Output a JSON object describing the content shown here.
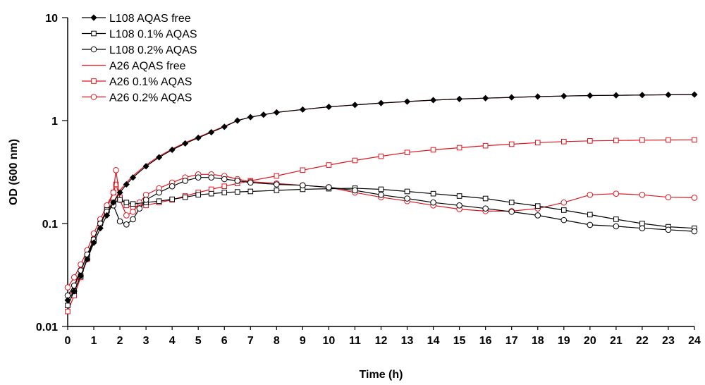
{
  "chart_data": {
    "type": "line",
    "title": "",
    "xlabel": "Time (h)",
    "ylabel": "OD (600 nm)",
    "xlim": [
      0,
      24
    ],
    "ylim": [
      0.01,
      10
    ],
    "yscale": "log",
    "grid": false,
    "legend_position": "top-left",
    "x_ticks": [
      "0",
      "1",
      "2",
      "3",
      "4",
      "5",
      "6",
      "7",
      "8",
      "9",
      "10",
      "11",
      "12",
      "13",
      "14",
      "15",
      "16",
      "17",
      "18",
      "19",
      "20",
      "21",
      "22",
      "23",
      "24"
    ],
    "y_ticks": [
      {
        "value": 0.01,
        "label": "0.01"
      },
      {
        "value": 0.1,
        "label": "0.1"
      },
      {
        "value": 1,
        "label": "1"
      },
      {
        "value": 10,
        "label": "10"
      }
    ],
    "series": [
      {
        "name": "L108 AQAS free",
        "color": "#000000",
        "marker": "diamond-filled",
        "line": "solid",
        "points": [
          [
            0,
            0.018
          ],
          [
            0.25,
            0.022
          ],
          [
            0.5,
            0.031
          ],
          [
            0.75,
            0.045
          ],
          [
            1,
            0.065
          ],
          [
            1.25,
            0.09
          ],
          [
            1.5,
            0.12
          ],
          [
            1.75,
            0.16
          ],
          [
            2,
            0.2
          ],
          [
            2.25,
            0.24
          ],
          [
            2.5,
            0.28
          ],
          [
            3,
            0.36
          ],
          [
            3.5,
            0.44
          ],
          [
            4,
            0.52
          ],
          [
            4.5,
            0.6
          ],
          [
            5,
            0.68
          ],
          [
            5.5,
            0.77
          ],
          [
            6,
            0.87
          ],
          [
            6.5,
            1.0
          ],
          [
            7,
            1.08
          ],
          [
            7.5,
            1.14
          ],
          [
            8,
            1.2
          ],
          [
            9,
            1.28
          ],
          [
            10,
            1.36
          ],
          [
            11,
            1.42
          ],
          [
            12,
            1.48
          ],
          [
            13,
            1.53
          ],
          [
            14,
            1.58
          ],
          [
            15,
            1.62
          ],
          [
            16,
            1.65
          ],
          [
            17,
            1.68
          ],
          [
            18,
            1.71
          ],
          [
            19,
            1.73
          ],
          [
            20,
            1.75
          ],
          [
            21,
            1.76
          ],
          [
            22,
            1.77
          ],
          [
            23,
            1.78
          ],
          [
            24,
            1.79
          ]
        ]
      },
      {
        "name": "L108 0.1% AQAS",
        "color": "#000000",
        "marker": "square-open",
        "line": "solid",
        "points": [
          [
            0,
            0.016
          ],
          [
            0.25,
            0.022
          ],
          [
            0.5,
            0.031
          ],
          [
            0.75,
            0.046
          ],
          [
            1,
            0.07
          ],
          [
            1.25,
            0.1
          ],
          [
            1.5,
            0.135
          ],
          [
            1.75,
            0.16
          ],
          [
            2,
            0.17
          ],
          [
            2.25,
            0.16
          ],
          [
            2.5,
            0.155
          ],
          [
            3,
            0.16
          ],
          [
            3.5,
            0.165
          ],
          [
            4,
            0.172
          ],
          [
            4.5,
            0.18
          ],
          [
            5,
            0.19
          ],
          [
            5.5,
            0.195
          ],
          [
            6,
            0.2
          ],
          [
            6.5,
            0.203
          ],
          [
            7,
            0.205
          ],
          [
            8,
            0.21
          ],
          [
            9,
            0.215
          ],
          [
            10,
            0.218
          ],
          [
            11,
            0.22
          ],
          [
            12,
            0.215
          ],
          [
            13,
            0.205
          ],
          [
            14,
            0.195
          ],
          [
            15,
            0.185
          ],
          [
            16,
            0.175
          ],
          [
            17,
            0.16
          ],
          [
            18,
            0.148
          ],
          [
            19,
            0.135
          ],
          [
            20,
            0.122
          ],
          [
            21,
            0.11
          ],
          [
            22,
            0.1
          ],
          [
            23,
            0.093
          ],
          [
            24,
            0.09
          ]
        ]
      },
      {
        "name": "L108 0.2% AQAS",
        "color": "#000000",
        "marker": "circle-open",
        "line": "solid",
        "points": [
          [
            0,
            0.02
          ],
          [
            0.25,
            0.025
          ],
          [
            0.5,
            0.035
          ],
          [
            0.75,
            0.05
          ],
          [
            1,
            0.07
          ],
          [
            1.25,
            0.1
          ],
          [
            1.5,
            0.13
          ],
          [
            1.75,
            0.15
          ],
          [
            2,
            0.105
          ],
          [
            2.25,
            0.098
          ],
          [
            2.5,
            0.11
          ],
          [
            2.75,
            0.14
          ],
          [
            3,
            0.17
          ],
          [
            3.5,
            0.2
          ],
          [
            4,
            0.23
          ],
          [
            4.5,
            0.26
          ],
          [
            5,
            0.28
          ],
          [
            5.5,
            0.28
          ],
          [
            6,
            0.27
          ],
          [
            6.5,
            0.26
          ],
          [
            7,
            0.25
          ],
          [
            8,
            0.24
          ],
          [
            9,
            0.235
          ],
          [
            10,
            0.225
          ],
          [
            11,
            0.21
          ],
          [
            12,
            0.19
          ],
          [
            13,
            0.175
          ],
          [
            14,
            0.16
          ],
          [
            15,
            0.15
          ],
          [
            16,
            0.14
          ],
          [
            17,
            0.13
          ],
          [
            18,
            0.12
          ],
          [
            19,
            0.108
          ],
          [
            20,
            0.097
          ],
          [
            21,
            0.094
          ],
          [
            22,
            0.09
          ],
          [
            23,
            0.087
          ],
          [
            24,
            0.084
          ]
        ]
      },
      {
        "name": "A26 AQAS free",
        "color": "#e0141e",
        "marker": "none",
        "line": "solid",
        "points": [
          [
            0,
            0.019
          ],
          [
            0.25,
            0.024
          ],
          [
            0.5,
            0.034
          ],
          [
            0.75,
            0.05
          ],
          [
            1,
            0.07
          ],
          [
            1.25,
            0.1
          ],
          [
            1.5,
            0.13
          ],
          [
            1.75,
            0.16
          ],
          [
            2,
            0.21
          ],
          [
            2.25,
            0.25
          ],
          [
            2.5,
            0.29
          ],
          [
            3,
            0.37
          ],
          [
            3.5,
            0.45
          ],
          [
            4,
            0.53
          ],
          [
            4.5,
            0.61
          ],
          [
            5,
            0.69
          ],
          [
            5.5,
            0.78
          ],
          [
            6,
            0.88
          ],
          [
            6.5,
            1.0
          ],
          [
            7,
            1.08
          ],
          [
            7.5,
            1.14
          ],
          [
            8,
            1.2
          ],
          [
            9,
            1.28
          ],
          [
            10,
            1.36
          ],
          [
            11,
            1.42
          ],
          [
            12,
            1.48
          ],
          [
            13,
            1.53
          ],
          [
            14,
            1.58
          ],
          [
            15,
            1.62
          ],
          [
            16,
            1.65
          ],
          [
            17,
            1.68
          ],
          [
            18,
            1.71
          ],
          [
            19,
            1.73
          ],
          [
            20,
            1.75
          ],
          [
            21,
            1.76
          ],
          [
            22,
            1.77
          ],
          [
            23,
            1.78
          ],
          [
            24,
            1.79
          ]
        ]
      },
      {
        "name": "A26 0.1% AQAS",
        "color": "#e0141e",
        "marker": "square-open",
        "line": "solid",
        "points": [
          [
            0,
            0.014
          ],
          [
            0.25,
            0.02
          ],
          [
            0.5,
            0.03
          ],
          [
            0.75,
            0.045
          ],
          [
            1,
            0.07
          ],
          [
            1.25,
            0.1
          ],
          [
            1.5,
            0.14
          ],
          [
            1.75,
            0.2
          ],
          [
            1.85,
            0.24
          ],
          [
            2,
            0.18
          ],
          [
            2.25,
            0.15
          ],
          [
            2.5,
            0.145
          ],
          [
            3,
            0.15
          ],
          [
            3.5,
            0.16
          ],
          [
            4,
            0.17
          ],
          [
            4.5,
            0.185
          ],
          [
            5,
            0.2
          ],
          [
            5.5,
            0.215
          ],
          [
            6,
            0.23
          ],
          [
            6.5,
            0.245
          ],
          [
            7,
            0.26
          ],
          [
            8,
            0.29
          ],
          [
            9,
            0.33
          ],
          [
            10,
            0.37
          ],
          [
            11,
            0.41
          ],
          [
            12,
            0.45
          ],
          [
            13,
            0.49
          ],
          [
            14,
            0.52
          ],
          [
            15,
            0.545
          ],
          [
            16,
            0.57
          ],
          [
            17,
            0.59
          ],
          [
            18,
            0.61
          ],
          [
            19,
            0.625
          ],
          [
            20,
            0.635
          ],
          [
            21,
            0.64
          ],
          [
            22,
            0.645
          ],
          [
            23,
            0.648
          ],
          [
            24,
            0.65
          ]
        ]
      },
      {
        "name": "A26 0.2% AQAS",
        "color": "#e0141e",
        "marker": "circle-open",
        "line": "solid",
        "points": [
          [
            0,
            0.024
          ],
          [
            0.25,
            0.03
          ],
          [
            0.5,
            0.04
          ],
          [
            0.75,
            0.055
          ],
          [
            1,
            0.08
          ],
          [
            1.25,
            0.11
          ],
          [
            1.5,
            0.15
          ],
          [
            1.75,
            0.2
          ],
          [
            1.85,
            0.33
          ],
          [
            2,
            0.17
          ],
          [
            2.25,
            0.12
          ],
          [
            2.5,
            0.13
          ],
          [
            2.75,
            0.16
          ],
          [
            3,
            0.19
          ],
          [
            3.5,
            0.22
          ],
          [
            4,
            0.25
          ],
          [
            4.5,
            0.28
          ],
          [
            5,
            0.3
          ],
          [
            5.5,
            0.3
          ],
          [
            6,
            0.29
          ],
          [
            6.5,
            0.27
          ],
          [
            7,
            0.255
          ],
          [
            8,
            0.245
          ],
          [
            9,
            0.235
          ],
          [
            10,
            0.225
          ],
          [
            11,
            0.2
          ],
          [
            12,
            0.18
          ],
          [
            13,
            0.165
          ],
          [
            14,
            0.15
          ],
          [
            15,
            0.138
          ],
          [
            16,
            0.132
          ],
          [
            17,
            0.132
          ],
          [
            18,
            0.14
          ],
          [
            19,
            0.16
          ],
          [
            20,
            0.19
          ],
          [
            21,
            0.195
          ],
          [
            22,
            0.19
          ],
          [
            23,
            0.18
          ],
          [
            24,
            0.178
          ]
        ]
      }
    ]
  }
}
